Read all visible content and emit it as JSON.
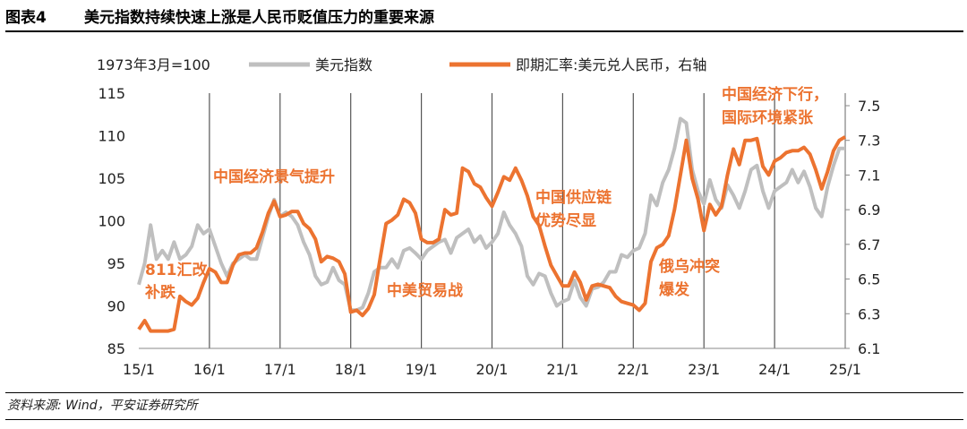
{
  "figure": {
    "label": "图表4",
    "title": "美元指数持续快速上涨是人民币贬值压力的重要来源",
    "source": "资料来源: Wind，平安证券研究所"
  },
  "chart_data": {
    "type": "line",
    "unit_note": "1973年3月=100",
    "xlabel": "",
    "ylabel_left": "",
    "ylabel_right": "",
    "x_ticks": [
      "15/1",
      "16/1",
      "17/1",
      "18/1",
      "19/1",
      "20/1",
      "21/1",
      "22/1",
      "23/1",
      "24/1",
      "25/1"
    ],
    "ylim_left": [
      85,
      115
    ],
    "yticks_left": [
      85,
      90,
      95,
      100,
      105,
      110,
      115
    ],
    "ylim_right": [
      6.1,
      7.5
    ],
    "yticks_right": [
      "6.1",
      "6.3",
      "6.5",
      "6.7",
      "6.9",
      "7.1",
      "7.3",
      "7.5"
    ],
    "grid": "vertical lines at each year",
    "legend_position": "top",
    "colors": {
      "dxy": "#BFBFBF",
      "usdcny": "#EC7330",
      "annotation": "#EC7330"
    },
    "series": [
      {
        "name": "美元指数",
        "axis": "left",
        "points": [
          [
            "2015-01",
            92.5
          ],
          [
            "2015-02",
            95.0
          ],
          [
            "2015-03",
            99.5
          ],
          [
            "2015-04",
            95.5
          ],
          [
            "2015-05",
            96.5
          ],
          [
            "2015-06",
            95.5
          ],
          [
            "2015-07",
            97.5
          ],
          [
            "2015-08",
            95.5
          ],
          [
            "2015-09",
            96.0
          ],
          [
            "2015-10",
            97.0
          ],
          [
            "2015-11",
            99.5
          ],
          [
            "2015-12",
            98.5
          ],
          [
            "2016-01",
            99.0
          ],
          [
            "2016-02",
            97.0
          ],
          [
            "2016-03",
            95.0
          ],
          [
            "2016-04",
            93.5
          ],
          [
            "2016-05",
            95.0
          ],
          [
            "2016-06",
            95.5
          ],
          [
            "2016-07",
            96.0
          ],
          [
            "2016-08",
            95.5
          ],
          [
            "2016-09",
            95.5
          ],
          [
            "2016-10",
            98.0
          ],
          [
            "2016-11",
            100.5
          ],
          [
            "2016-12",
            102.5
          ],
          [
            "2017-01",
            100.5
          ],
          [
            "2017-02",
            101.0
          ],
          [
            "2017-03",
            100.5
          ],
          [
            "2017-04",
            99.5
          ],
          [
            "2017-05",
            97.5
          ],
          [
            "2017-06",
            96.0
          ],
          [
            "2017-07",
            93.5
          ],
          [
            "2017-08",
            92.5
          ],
          [
            "2017-09",
            92.8
          ],
          [
            "2017-10",
            94.5
          ],
          [
            "2017-11",
            93.0
          ],
          [
            "2017-12",
            92.5
          ],
          [
            "2018-01",
            89.5
          ],
          [
            "2018-02",
            89.5
          ],
          [
            "2018-03",
            89.8
          ],
          [
            "2018-04",
            91.5
          ],
          [
            "2018-05",
            94.0
          ],
          [
            "2018-06",
            94.5
          ],
          [
            "2018-07",
            94.5
          ],
          [
            "2018-08",
            95.5
          ],
          [
            "2018-09",
            94.5
          ],
          [
            "2018-10",
            96.5
          ],
          [
            "2018-11",
            96.8
          ],
          [
            "2018-12",
            96.2
          ],
          [
            "2019-01",
            95.5
          ],
          [
            "2019-02",
            96.5
          ],
          [
            "2019-03",
            97.0
          ],
          [
            "2019-04",
            97.5
          ],
          [
            "2019-05",
            97.8
          ],
          [
            "2019-06",
            96.2
          ],
          [
            "2019-07",
            98.0
          ],
          [
            "2019-08",
            98.5
          ],
          [
            "2019-09",
            99.0
          ],
          [
            "2019-10",
            97.5
          ],
          [
            "2019-11",
            98.2
          ],
          [
            "2019-12",
            96.8
          ],
          [
            "2020-01",
            97.5
          ],
          [
            "2020-02",
            98.5
          ],
          [
            "2020-03",
            101.0
          ],
          [
            "2020-04",
            99.5
          ],
          [
            "2020-05",
            98.5
          ],
          [
            "2020-06",
            97.0
          ],
          [
            "2020-07",
            93.5
          ],
          [
            "2020-08",
            92.5
          ],
          [
            "2020-09",
            93.8
          ],
          [
            "2020-10",
            93.5
          ],
          [
            "2020-11",
            91.5
          ],
          [
            "2020-12",
            90.0
          ],
          [
            "2021-01",
            90.5
          ],
          [
            "2021-02",
            90.8
          ],
          [
            "2021-03",
            93.0
          ],
          [
            "2021-04",
            91.0
          ],
          [
            "2021-05",
            90.0
          ],
          [
            "2021-06",
            92.0
          ],
          [
            "2021-07",
            92.2
          ],
          [
            "2021-08",
            92.8
          ],
          [
            "2021-09",
            94.0
          ],
          [
            "2021-10",
            94.0
          ],
          [
            "2021-11",
            96.0
          ],
          [
            "2021-12",
            95.7
          ],
          [
            "2022-01",
            96.5
          ],
          [
            "2022-02",
            96.8
          ],
          [
            "2022-03",
            98.5
          ],
          [
            "2022-04",
            103.0
          ],
          [
            "2022-05",
            101.8
          ],
          [
            "2022-06",
            104.5
          ],
          [
            "2022-07",
            106.0
          ],
          [
            "2022-08",
            108.5
          ],
          [
            "2022-09",
            112.0
          ],
          [
            "2022-10",
            111.5
          ],
          [
            "2022-11",
            106.0
          ],
          [
            "2022-12",
            103.5
          ],
          [
            "2023-01",
            102.0
          ],
          [
            "2023-02",
            104.8
          ],
          [
            "2023-03",
            102.5
          ],
          [
            "2023-04",
            101.5
          ],
          [
            "2023-05",
            104.2
          ],
          [
            "2023-06",
            103.0
          ],
          [
            "2023-07",
            101.5
          ],
          [
            "2023-08",
            103.5
          ],
          [
            "2023-09",
            106.0
          ],
          [
            "2023-10",
            106.5
          ],
          [
            "2023-11",
            103.5
          ],
          [
            "2023-12",
            101.5
          ],
          [
            "2024-01",
            103.5
          ],
          [
            "2024-02",
            104.0
          ],
          [
            "2024-03",
            104.5
          ],
          [
            "2024-04",
            106.0
          ],
          [
            "2024-05",
            104.5
          ],
          [
            "2024-06",
            105.8
          ],
          [
            "2024-07",
            104.0
          ],
          [
            "2024-08",
            101.5
          ],
          [
            "2024-09",
            100.5
          ],
          [
            "2024-10",
            104.0
          ],
          [
            "2024-11",
            106.5
          ],
          [
            "2024-12",
            108.5
          ],
          [
            "2025-01",
            108.5
          ]
        ]
      },
      {
        "name": "即期汇率:美元兑人民币，右轴",
        "axis": "right",
        "points": [
          [
            "2015-01",
            6.21
          ],
          [
            "2015-02",
            6.26
          ],
          [
            "2015-03",
            6.2
          ],
          [
            "2015-04",
            6.2
          ],
          [
            "2015-05",
            6.2
          ],
          [
            "2015-06",
            6.2
          ],
          [
            "2015-07",
            6.21
          ],
          [
            "2015-08",
            6.4
          ],
          [
            "2015-09",
            6.37
          ],
          [
            "2015-10",
            6.35
          ],
          [
            "2015-11",
            6.39
          ],
          [
            "2015-12",
            6.48
          ],
          [
            "2016-01",
            6.56
          ],
          [
            "2016-02",
            6.54
          ],
          [
            "2016-03",
            6.48
          ],
          [
            "2016-04",
            6.48
          ],
          [
            "2016-05",
            6.58
          ],
          [
            "2016-06",
            6.64
          ],
          [
            "2016-07",
            6.65
          ],
          [
            "2016-08",
            6.65
          ],
          [
            "2016-09",
            6.68
          ],
          [
            "2016-10",
            6.77
          ],
          [
            "2016-11",
            6.88
          ],
          [
            "2016-12",
            6.95
          ],
          [
            "2017-01",
            6.86
          ],
          [
            "2017-02",
            6.87
          ],
          [
            "2017-03",
            6.89
          ],
          [
            "2017-04",
            6.89
          ],
          [
            "2017-05",
            6.82
          ],
          [
            "2017-06",
            6.79
          ],
          [
            "2017-07",
            6.73
          ],
          [
            "2017-08",
            6.6
          ],
          [
            "2017-09",
            6.63
          ],
          [
            "2017-10",
            6.62
          ],
          [
            "2017-11",
            6.6
          ],
          [
            "2017-12",
            6.53
          ],
          [
            "2018-01",
            6.31
          ],
          [
            "2018-02",
            6.32
          ],
          [
            "2018-03",
            6.29
          ],
          [
            "2018-04",
            6.33
          ],
          [
            "2018-05",
            6.41
          ],
          [
            "2018-06",
            6.62
          ],
          [
            "2018-07",
            6.82
          ],
          [
            "2018-08",
            6.84
          ],
          [
            "2018-09",
            6.87
          ],
          [
            "2018-10",
            6.96
          ],
          [
            "2018-11",
            6.94
          ],
          [
            "2018-12",
            6.88
          ],
          [
            "2019-01",
            6.73
          ],
          [
            "2019-02",
            6.71
          ],
          [
            "2019-03",
            6.71
          ],
          [
            "2019-04",
            6.73
          ],
          [
            "2019-05",
            6.9
          ],
          [
            "2019-06",
            6.87
          ],
          [
            "2019-07",
            6.88
          ],
          [
            "2019-08",
            7.14
          ],
          [
            "2019-09",
            7.12
          ],
          [
            "2019-10",
            7.05
          ],
          [
            "2019-11",
            7.03
          ],
          [
            "2019-12",
            6.97
          ],
          [
            "2020-01",
            6.92
          ],
          [
            "2020-02",
            7.0
          ],
          [
            "2020-03",
            7.09
          ],
          [
            "2020-04",
            7.07
          ],
          [
            "2020-05",
            7.14
          ],
          [
            "2020-06",
            7.07
          ],
          [
            "2020-07",
            6.98
          ],
          [
            "2020-08",
            6.86
          ],
          [
            "2020-09",
            6.81
          ],
          [
            "2020-10",
            6.69
          ],
          [
            "2020-11",
            6.58
          ],
          [
            "2020-12",
            6.52
          ],
          [
            "2021-01",
            6.46
          ],
          [
            "2021-02",
            6.46
          ],
          [
            "2021-03",
            6.54
          ],
          [
            "2021-04",
            6.48
          ],
          [
            "2021-05",
            6.38
          ],
          [
            "2021-06",
            6.46
          ],
          [
            "2021-07",
            6.47
          ],
          [
            "2021-08",
            6.46
          ],
          [
            "2021-09",
            6.45
          ],
          [
            "2021-10",
            6.4
          ],
          [
            "2021-11",
            6.37
          ],
          [
            "2021-12",
            6.36
          ],
          [
            "2022-01",
            6.35
          ],
          [
            "2022-02",
            6.32
          ],
          [
            "2022-03",
            6.36
          ],
          [
            "2022-04",
            6.6
          ],
          [
            "2022-05",
            6.68
          ],
          [
            "2022-06",
            6.7
          ],
          [
            "2022-07",
            6.75
          ],
          [
            "2022-08",
            6.9
          ],
          [
            "2022-09",
            7.1
          ],
          [
            "2022-10",
            7.3
          ],
          [
            "2022-11",
            7.08
          ],
          [
            "2022-12",
            6.96
          ],
          [
            "2023-01",
            6.78
          ],
          [
            "2023-02",
            6.93
          ],
          [
            "2023-03",
            6.87
          ],
          [
            "2023-04",
            6.92
          ],
          [
            "2023-05",
            7.1
          ],
          [
            "2023-06",
            7.25
          ],
          [
            "2023-07",
            7.16
          ],
          [
            "2023-08",
            7.3
          ],
          [
            "2023-09",
            7.3
          ],
          [
            "2023-10",
            7.31
          ],
          [
            "2023-11",
            7.15
          ],
          [
            "2023-12",
            7.1
          ],
          [
            "2024-01",
            7.18
          ],
          [
            "2024-02",
            7.2
          ],
          [
            "2024-03",
            7.23
          ],
          [
            "2024-04",
            7.24
          ],
          [
            "2024-05",
            7.24
          ],
          [
            "2024-06",
            7.26
          ],
          [
            "2024-07",
            7.22
          ],
          [
            "2024-08",
            7.13
          ],
          [
            "2024-09",
            7.02
          ],
          [
            "2024-10",
            7.12
          ],
          [
            "2024-11",
            7.24
          ],
          [
            "2024-12",
            7.3
          ],
          [
            "2025-01",
            7.32
          ]
        ]
      }
    ],
    "annotations": [
      {
        "id": "a1",
        "lines": [
          "811汇改",
          "补跌"
        ]
      },
      {
        "id": "a2",
        "lines": [
          "中国经济景气提升"
        ]
      },
      {
        "id": "a3",
        "lines": [
          "中美贸易战"
        ]
      },
      {
        "id": "a4",
        "lines": [
          "中国供应链",
          "优势尽显"
        ]
      },
      {
        "id": "a5",
        "lines": [
          "俄乌冲突",
          "爆发"
        ]
      },
      {
        "id": "a6",
        "lines": [
          "中国经济下行，",
          "国际环境紧张"
        ]
      }
    ]
  }
}
